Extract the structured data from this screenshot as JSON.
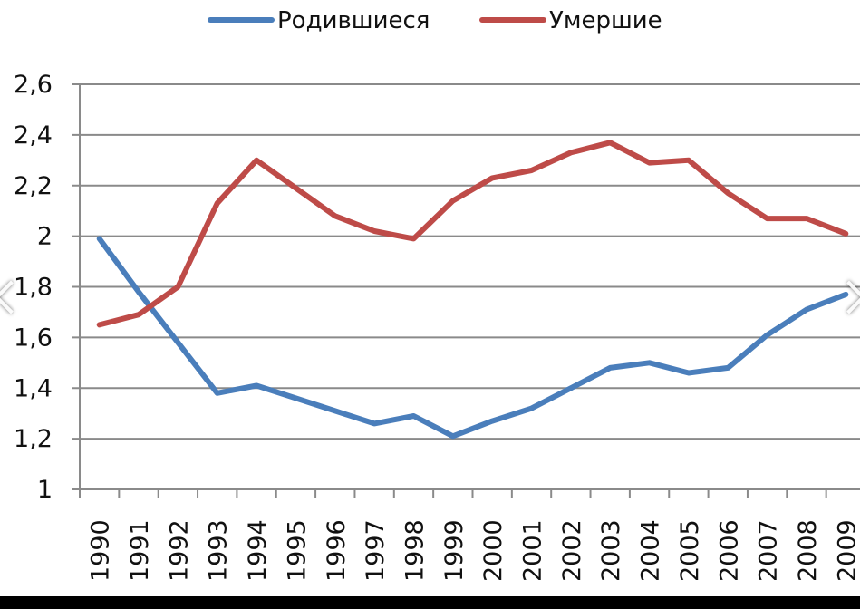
{
  "chart_data": {
    "type": "line",
    "x": [
      "1990",
      "1991",
      "1992",
      "1993",
      "1994",
      "1995",
      "1996",
      "1997",
      "1998",
      "1999",
      "2000",
      "2001",
      "2002",
      "2003",
      "2004",
      "2005",
      "2006",
      "2007",
      "2008",
      "2009"
    ],
    "series": [
      {
        "name": "Родившиеся",
        "color": "#4a7ebb",
        "values": [
          1.99,
          1.78,
          1.58,
          1.38,
          1.41,
          1.36,
          1.31,
          1.26,
          1.29,
          1.21,
          1.27,
          1.32,
          1.4,
          1.48,
          1.5,
          1.46,
          1.48,
          1.61,
          1.71,
          1.77
        ]
      },
      {
        "name": "Умершие",
        "color": "#be4b48",
        "values": [
          1.65,
          1.69,
          1.8,
          2.13,
          2.3,
          2.19,
          2.08,
          2.02,
          1.99,
          2.14,
          2.23,
          2.26,
          2.33,
          2.37,
          2.29,
          2.3,
          2.17,
          2.07,
          2.07,
          2.01
        ]
      }
    ],
    "ylim": [
      1,
      2.6
    ],
    "yticks": [
      "1",
      "1,2",
      "1,4",
      "1,6",
      "1,8",
      "2",
      "2,2",
      "2,4",
      "2,6"
    ],
    "grid": true,
    "legend": "top-center"
  },
  "nav": {
    "prev_icon": "chevron-left-icon",
    "next_icon": "chevron-right-icon"
  }
}
